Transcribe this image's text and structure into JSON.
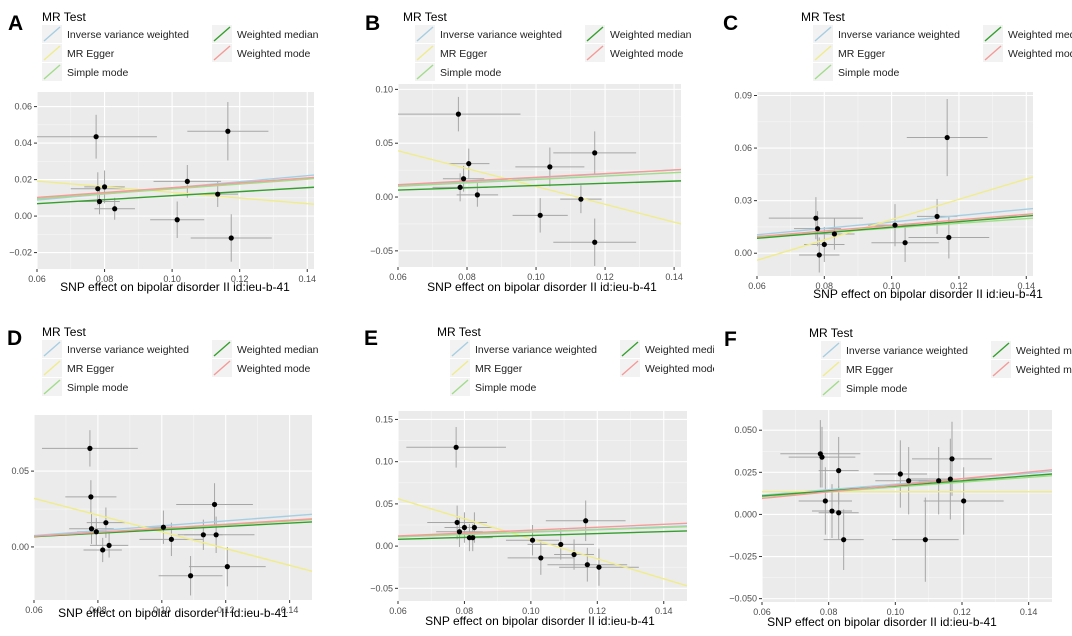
{
  "figure": {
    "legend_title": "MR Test",
    "methods": [
      {
        "name": "Inverse variance weighted",
        "color": "#a6cee3"
      },
      {
        "name": "MR Egger",
        "color": "#f0ec8a"
      },
      {
        "name": "Simple mode",
        "color": "#a1dc8a"
      },
      {
        "name": "Weighted median",
        "color": "#33a02c"
      },
      {
        "name": "Weighted mode",
        "color": "#f49a97"
      }
    ],
    "panel_bg": "#ebebeb",
    "grid_color": "#ffffff",
    "point_color": "#000000",
    "errorbar_color": "#a6a6a6"
  },
  "chart_data": [
    {
      "panel": "A",
      "type": "scatter",
      "title": "",
      "xlabel": "SNP effect on bipolar disorder II id:ieu-b-41",
      "ylabel": "",
      "xlim": [
        0.06,
        0.142
      ],
      "ylim": [
        -0.029,
        0.068
      ],
      "xticks": [
        0.06,
        0.08,
        0.1,
        0.12,
        0.14
      ],
      "xtick_labels": [
        "0.06",
        "0.08",
        "0.10",
        "0.12",
        "0.14"
      ],
      "yticks": [
        -0.02,
        0.0,
        0.02,
        0.04,
        0.06
      ],
      "ytick_labels": [
        "−0.02",
        "0.00",
        "0.02",
        "0.04",
        "0.06"
      ],
      "points": [
        {
          "x": 0.0775,
          "y": 0.0435,
          "xerr": 0.018,
          "yerr": 0.012
        },
        {
          "x": 0.078,
          "y": 0.015,
          "xerr": 0.008,
          "yerr": 0.009
        },
        {
          "x": 0.0785,
          "y": 0.008,
          "xerr": 0.006,
          "yerr": 0.007
        },
        {
          "x": 0.08,
          "y": 0.016,
          "xerr": 0.006,
          "yerr": 0.009
        },
        {
          "x": 0.083,
          "y": 0.004,
          "xerr": 0.006,
          "yerr": 0.006
        },
        {
          "x": 0.1015,
          "y": -0.002,
          "xerr": 0.008,
          "yerr": 0.01
        },
        {
          "x": 0.1045,
          "y": 0.019,
          "xerr": 0.01,
          "yerr": 0.009
        },
        {
          "x": 0.1135,
          "y": 0.012,
          "xerr": 0.006,
          "yerr": 0.007
        },
        {
          "x": 0.1165,
          "y": 0.0465,
          "xerr": 0.012,
          "yerr": 0.016
        },
        {
          "x": 0.1175,
          "y": -0.012,
          "xerr": 0.012,
          "yerr": 0.013
        }
      ],
      "lines": [
        {
          "method": "Inverse variance weighted",
          "y0": 0.0088,
          "y1": 0.0225
        },
        {
          "method": "MR Egger",
          "y0": 0.0192,
          "y1": 0.0065
        },
        {
          "method": "Simple mode",
          "y0": 0.0095,
          "y1": 0.0205
        },
        {
          "method": "Weighted median",
          "y0": 0.0068,
          "y1": 0.0158
        },
        {
          "method": "Weighted mode",
          "y0": 0.0102,
          "y1": 0.0212
        }
      ]
    },
    {
      "panel": "B",
      "type": "scatter",
      "title": "",
      "xlabel": "SNP effect on bipolar disorder II id:ieu-b-41",
      "ylabel": "",
      "xlim": [
        0.06,
        0.142
      ],
      "ylim": [
        -0.065,
        0.105
      ],
      "xticks": [
        0.06,
        0.08,
        0.1,
        0.12,
        0.14
      ],
      "xtick_labels": [
        "0.06",
        "0.08",
        "0.10",
        "0.12",
        "0.14"
      ],
      "yticks": [
        -0.05,
        0.0,
        0.05,
        0.1
      ],
      "ytick_labels": [
        "−0.05",
        "0.00",
        "0.05",
        "0.10"
      ],
      "points": [
        {
          "x": 0.0775,
          "y": 0.077,
          "xerr": 0.018,
          "yerr": 0.016
        },
        {
          "x": 0.078,
          "y": 0.009,
          "xerr": 0.008,
          "yerr": 0.013
        },
        {
          "x": 0.079,
          "y": 0.017,
          "xerr": 0.006,
          "yerr": 0.012
        },
        {
          "x": 0.0805,
          "y": 0.031,
          "xerr": 0.006,
          "yerr": 0.014
        },
        {
          "x": 0.083,
          "y": 0.002,
          "xerr": 0.006,
          "yerr": 0.011
        },
        {
          "x": 0.1012,
          "y": -0.017,
          "xerr": 0.008,
          "yerr": 0.016
        },
        {
          "x": 0.104,
          "y": 0.028,
          "xerr": 0.01,
          "yerr": 0.018
        },
        {
          "x": 0.113,
          "y": -0.002,
          "xerr": 0.006,
          "yerr": 0.013
        },
        {
          "x": 0.117,
          "y": 0.041,
          "xerr": 0.012,
          "yerr": 0.02
        },
        {
          "x": 0.117,
          "y": -0.042,
          "xerr": 0.012,
          "yerr": 0.022
        }
      ],
      "lines": [
        {
          "method": "Inverse variance weighted",
          "y0": 0.0105,
          "y1": 0.0255
        },
        {
          "method": "MR Egger",
          "y0": 0.043,
          "y1": -0.025
        },
        {
          "method": "Simple mode",
          "y0": 0.01,
          "y1": 0.023
        },
        {
          "method": "Weighted median",
          "y0": 0.0065,
          "y1": 0.015
        },
        {
          "method": "Weighted mode",
          "y0": 0.0115,
          "y1": 0.0255
        }
      ]
    },
    {
      "panel": "C",
      "type": "scatter",
      "title": "",
      "xlabel": "SNP effect on bipolar disorder II id:ieu-b-41",
      "ylabel": "",
      "xlim": [
        0.06,
        0.142
      ],
      "ylim": [
        -0.013,
        0.092
      ],
      "xticks": [
        0.06,
        0.08,
        0.1,
        0.12,
        0.14
      ],
      "xtick_labels": [
        "0.06",
        "0.08",
        "0.10",
        "0.12",
        "0.14"
      ],
      "yticks": [
        0.0,
        0.03,
        0.06,
        0.09
      ],
      "ytick_labels": [
        "0.00",
        "0.03",
        "0.06",
        "0.09"
      ],
      "points": [
        {
          "x": 0.0775,
          "y": 0.02,
          "xerr": 0.014,
          "yerr": 0.012
        },
        {
          "x": 0.078,
          "y": 0.014,
          "xerr": 0.007,
          "yerr": 0.01
        },
        {
          "x": 0.0785,
          "y": -0.001,
          "xerr": 0.006,
          "yerr": 0.01
        },
        {
          "x": 0.08,
          "y": 0.005,
          "xerr": 0.006,
          "yerr": 0.01
        },
        {
          "x": 0.083,
          "y": 0.011,
          "xerr": 0.006,
          "yerr": 0.009
        },
        {
          "x": 0.101,
          "y": 0.016,
          "xerr": 0.008,
          "yerr": 0.012
        },
        {
          "x": 0.104,
          "y": 0.006,
          "xerr": 0.01,
          "yerr": 0.011
        },
        {
          "x": 0.1135,
          "y": 0.021,
          "xerr": 0.006,
          "yerr": 0.01
        },
        {
          "x": 0.1165,
          "y": 0.066,
          "xerr": 0.012,
          "yerr": 0.022
        },
        {
          "x": 0.117,
          "y": 0.009,
          "xerr": 0.012,
          "yerr": 0.012
        }
      ],
      "lines": [
        {
          "method": "Inverse variance weighted",
          "y0": 0.0105,
          "y1": 0.0255
        },
        {
          "method": "MR Egger",
          "y0": -0.004,
          "y1": 0.0435
        },
        {
          "method": "Simple mode",
          "y0": 0.009,
          "y1": 0.02
        },
        {
          "method": "Weighted median",
          "y0": 0.0085,
          "y1": 0.0215
        },
        {
          "method": "Weighted mode",
          "y0": 0.0095,
          "y1": 0.0225
        }
      ]
    },
    {
      "panel": "D",
      "type": "scatter",
      "title": "",
      "xlabel": "SNP effect on bipolar disorder II id:ieu-b-41",
      "ylabel": "",
      "xlim": [
        0.06,
        0.147
      ],
      "ylim": [
        -0.035,
        0.087
      ],
      "xticks": [
        0.06,
        0.08,
        0.1,
        0.12,
        0.14
      ],
      "xtick_labels": [
        "0.06",
        "0.08",
        "0.10",
        "0.12",
        "0.14"
      ],
      "yticks": [
        0.0,
        0.05
      ],
      "ytick_labels": [
        "0.00",
        "0.05"
      ],
      "points": [
        {
          "x": 0.0775,
          "y": 0.065,
          "xerr": 0.015,
          "yerr": 0.012
        },
        {
          "x": 0.0778,
          "y": 0.033,
          "xerr": 0.008,
          "yerr": 0.011
        },
        {
          "x": 0.078,
          "y": 0.012,
          "xerr": 0.007,
          "yerr": 0.01
        },
        {
          "x": 0.0795,
          "y": 0.01,
          "xerr": 0.006,
          "yerr": 0.009
        },
        {
          "x": 0.0815,
          "y": -0.002,
          "xerr": 0.006,
          "yerr": 0.008
        },
        {
          "x": 0.0825,
          "y": 0.016,
          "xerr": 0.006,
          "yerr": 0.01
        },
        {
          "x": 0.0835,
          "y": 0.001,
          "xerr": 0.006,
          "yerr": 0.008
        },
        {
          "x": 0.1005,
          "y": 0.013,
          "xerr": 0.008,
          "yerr": 0.011
        },
        {
          "x": 0.103,
          "y": 0.005,
          "xerr": 0.01,
          "yerr": 0.011
        },
        {
          "x": 0.109,
          "y": -0.019,
          "xerr": 0.01,
          "yerr": 0.013
        },
        {
          "x": 0.113,
          "y": 0.008,
          "xerr": 0.006,
          "yerr": 0.01
        },
        {
          "x": 0.1165,
          "y": 0.028,
          "xerr": 0.012,
          "yerr": 0.014
        },
        {
          "x": 0.117,
          "y": 0.008,
          "xerr": 0.012,
          "yerr": 0.012
        },
        {
          "x": 0.1205,
          "y": -0.013,
          "xerr": 0.012,
          "yerr": 0.013
        }
      ],
      "lines": [
        {
          "method": "Inverse variance weighted",
          "y0": 0.0075,
          "y1": 0.0215
        },
        {
          "method": "MR Egger",
          "y0": 0.032,
          "y1": -0.016
        },
        {
          "method": "Simple mode",
          "y0": 0.0068,
          "y1": 0.018
        },
        {
          "method": "Weighted median",
          "y0": 0.0068,
          "y1": 0.0165
        },
        {
          "method": "Weighted mode",
          "y0": 0.007,
          "y1": 0.0185
        }
      ]
    },
    {
      "panel": "E",
      "type": "scatter",
      "title": "",
      "xlabel": "SNP effect on bipolar disorder II id:ieu-b-41",
      "ylabel": "",
      "xlim": [
        0.06,
        0.147
      ],
      "ylim": [
        -0.065,
        0.16
      ],
      "xticks": [
        0.06,
        0.08,
        0.1,
        0.12,
        0.14
      ],
      "xtick_labels": [
        "0.06",
        "0.08",
        "0.10",
        "0.12",
        "0.14"
      ],
      "yticks": [
        -0.05,
        0.0,
        0.05,
        0.1,
        0.15
      ],
      "ytick_labels": [
        "−0.05",
        "0.00",
        "0.05",
        "0.10",
        "0.15"
      ],
      "points": [
        {
          "x": 0.0775,
          "y": 0.117,
          "xerr": 0.015,
          "yerr": 0.024
        },
        {
          "x": 0.0778,
          "y": 0.028,
          "xerr": 0.009,
          "yerr": 0.02
        },
        {
          "x": 0.0785,
          "y": 0.017,
          "xerr": 0.007,
          "yerr": 0.018
        },
        {
          "x": 0.08,
          "y": 0.022,
          "xerr": 0.006,
          "yerr": 0.018
        },
        {
          "x": 0.0815,
          "y": 0.01,
          "xerr": 0.006,
          "yerr": 0.016
        },
        {
          "x": 0.0825,
          "y": 0.01,
          "xerr": 0.006,
          "yerr": 0.016
        },
        {
          "x": 0.083,
          "y": 0.022,
          "xerr": 0.006,
          "yerr": 0.018
        },
        {
          "x": 0.1005,
          "y": 0.007,
          "xerr": 0.008,
          "yerr": 0.018
        },
        {
          "x": 0.103,
          "y": -0.014,
          "xerr": 0.01,
          "yerr": 0.02
        },
        {
          "x": 0.109,
          "y": 0.002,
          "xerr": 0.01,
          "yerr": 0.018
        },
        {
          "x": 0.113,
          "y": -0.01,
          "xerr": 0.006,
          "yerr": 0.018
        },
        {
          "x": 0.1165,
          "y": 0.03,
          "xerr": 0.012,
          "yerr": 0.024
        },
        {
          "x": 0.117,
          "y": -0.022,
          "xerr": 0.012,
          "yerr": 0.02
        },
        {
          "x": 0.1205,
          "y": -0.025,
          "xerr": 0.012,
          "yerr": 0.022
        }
      ],
      "lines": [
        {
          "method": "Inverse variance weighted",
          "y0": 0.011,
          "y1": 0.024
        },
        {
          "method": "MR Egger",
          "y0": 0.056,
          "y1": -0.047
        },
        {
          "method": "Simple mode",
          "y0": 0.011,
          "y1": 0.023
        },
        {
          "method": "Weighted median",
          "y0": 0.008,
          "y1": 0.018
        },
        {
          "method": "Weighted mode",
          "y0": 0.012,
          "y1": 0.027
        }
      ]
    },
    {
      "panel": "F",
      "type": "scatter",
      "title": "",
      "xlabel": "SNP effect on bipolar disorder II id:ieu-b-41",
      "ylabel": "",
      "xlim": [
        0.06,
        0.147
      ],
      "ylim": [
        -0.052,
        0.062
      ],
      "xticks": [
        0.06,
        0.08,
        0.1,
        0.12,
        0.14
      ],
      "xtick_labels": [
        "0.06",
        "0.08",
        "0.10",
        "0.12",
        "0.14"
      ],
      "yticks": [
        -0.05,
        -0.025,
        0.0,
        0.025,
        0.05
      ],
      "ytick_labels": [
        "−0.050",
        "−0.025",
        "0.000",
        "0.025",
        "0.050"
      ],
      "points": [
        {
          "x": 0.0775,
          "y": 0.036,
          "xerr": 0.012,
          "yerr": 0.02
        },
        {
          "x": 0.078,
          "y": 0.034,
          "xerr": 0.01,
          "yerr": 0.018
        },
        {
          "x": 0.079,
          "y": 0.008,
          "xerr": 0.008,
          "yerr": 0.02
        },
        {
          "x": 0.081,
          "y": 0.002,
          "xerr": 0.006,
          "yerr": 0.016
        },
        {
          "x": 0.083,
          "y": 0.001,
          "xerr": 0.006,
          "yerr": 0.016
        },
        {
          "x": 0.083,
          "y": 0.026,
          "xerr": 0.006,
          "yerr": 0.02
        },
        {
          "x": 0.0845,
          "y": -0.015,
          "xerr": 0.006,
          "yerr": 0.018
        },
        {
          "x": 0.1015,
          "y": 0.024,
          "xerr": 0.008,
          "yerr": 0.02
        },
        {
          "x": 0.104,
          "y": 0.02,
          "xerr": 0.01,
          "yerr": 0.02
        },
        {
          "x": 0.109,
          "y": -0.015,
          "xerr": 0.01,
          "yerr": 0.025
        },
        {
          "x": 0.113,
          "y": 0.02,
          "xerr": 0.006,
          "yerr": 0.02
        },
        {
          "x": 0.1165,
          "y": 0.021,
          "xerr": 0.012,
          "yerr": 0.024
        },
        {
          "x": 0.117,
          "y": 0.033,
          "xerr": 0.012,
          "yerr": 0.022
        },
        {
          "x": 0.1205,
          "y": 0.008,
          "xerr": 0.012,
          "yerr": 0.02
        }
      ],
      "lines": [
        {
          "method": "Inverse variance weighted",
          "y0": 0.0115,
          "y1": 0.0255
        },
        {
          "method": "MR Egger",
          "y0": 0.0135,
          "y1": 0.0135
        },
        {
          "method": "Simple mode",
          "y0": 0.0105,
          "y1": 0.023
        },
        {
          "method": "Weighted median",
          "y0": 0.011,
          "y1": 0.024
        },
        {
          "method": "Weighted mode",
          "y0": 0.0095,
          "y1": 0.0265
        }
      ]
    }
  ]
}
